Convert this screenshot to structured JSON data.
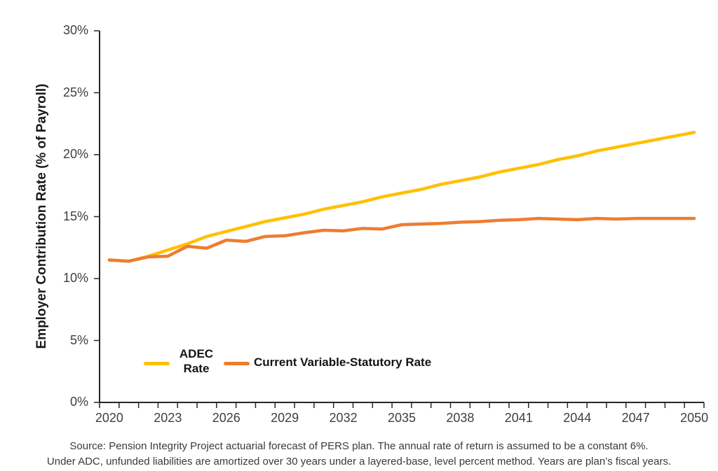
{
  "chart_data": {
    "type": "line",
    "title": "",
    "ylabel": "Employer Contribution Rate (% of Payroll)",
    "xlabel": "",
    "x": [
      2020,
      2021,
      2022,
      2023,
      2024,
      2025,
      2026,
      2027,
      2028,
      2029,
      2030,
      2031,
      2032,
      2033,
      2034,
      2035,
      2036,
      2037,
      2038,
      2039,
      2040,
      2041,
      2042,
      2043,
      2044,
      2045,
      2046,
      2047,
      2048,
      2049,
      2050
    ],
    "x_tick_labels": [
      "2020",
      "2023",
      "2026",
      "2029",
      "2032",
      "2035",
      "2038",
      "2041",
      "2044",
      "2047",
      "2050"
    ],
    "y_ticks": [
      0,
      5,
      10,
      15,
      20,
      25,
      30
    ],
    "y_tick_suffix": "%",
    "ylim": [
      0,
      30
    ],
    "grid": false,
    "axis_color": "#262626",
    "tick_label_color": "#3f3f3f",
    "legend_position": "inside-bottom-left",
    "series": [
      {
        "name": "ADEC Rate",
        "color": "#FFC000",
        "values": [
          11.5,
          11.4,
          11.8,
          12.3,
          12.8,
          13.4,
          13.8,
          14.2,
          14.6,
          14.9,
          15.2,
          15.6,
          15.9,
          16.2,
          16.6,
          16.9,
          17.2,
          17.6,
          17.9,
          18.2,
          18.6,
          18.9,
          19.2,
          19.6,
          19.9,
          20.3,
          20.6,
          20.9,
          21.2,
          21.5,
          21.8
        ]
      },
      {
        "name": "Current Variable-Statutory Rate",
        "color": "#ED7D31",
        "values": [
          11.5,
          11.4,
          11.75,
          11.8,
          12.6,
          12.45,
          13.1,
          13.0,
          13.4,
          13.45,
          13.7,
          13.9,
          13.85,
          14.05,
          14.0,
          14.35,
          14.4,
          14.45,
          14.55,
          14.6,
          14.7,
          14.75,
          14.85,
          14.8,
          14.75,
          14.85,
          14.8,
          14.85,
          14.85,
          14.85,
          14.85
        ]
      }
    ]
  },
  "legend": {
    "adec_line1": "ADEC",
    "adec_line2": "Rate",
    "variable_label": "Current Variable-Statutory Rate"
  },
  "source": {
    "line1": "Source: Pension Integrity Project actuarial forecast of PERS plan. The annual rate of return is assumed to be a constant 6%.",
    "line2": "Under ADC, unfunded liabilities are amortized over 30 years under a layered-base, level percent method. Years are plan’s fiscal years."
  }
}
